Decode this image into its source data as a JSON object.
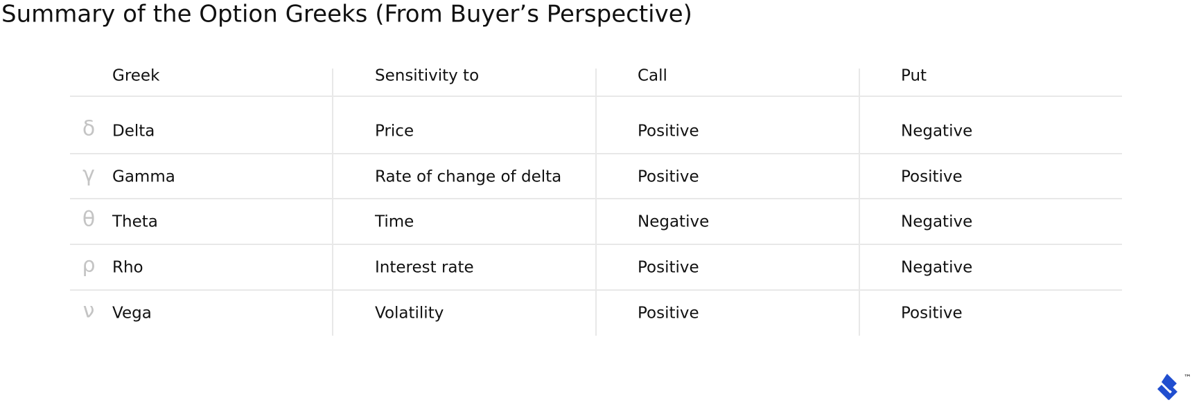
{
  "title": "Summary of the Option Greeks (From Buyer’s Perspective)",
  "table": {
    "headers": [
      "Greek",
      "Sensitivity to",
      "Call",
      "Put"
    ],
    "rows": [
      {
        "symbol": "δ",
        "cells": [
          "Delta",
          "Price",
          "Positive",
          "Negative"
        ]
      },
      {
        "symbol": "γ",
        "cells": [
          "Gamma",
          "Rate of change of delta",
          "Positive",
          "Positive"
        ]
      },
      {
        "symbol": "θ",
        "cells": [
          "Theta",
          "Time",
          "Negative",
          "Negative"
        ]
      },
      {
        "symbol": "ρ",
        "cells": [
          "Rho",
          "Interest rate",
          "Positive",
          "Negative"
        ]
      },
      {
        "symbol": "ν",
        "cells": [
          "Vega",
          "Volatility",
          "Positive",
          "Positive"
        ]
      }
    ]
  },
  "brand_mark": "™"
}
